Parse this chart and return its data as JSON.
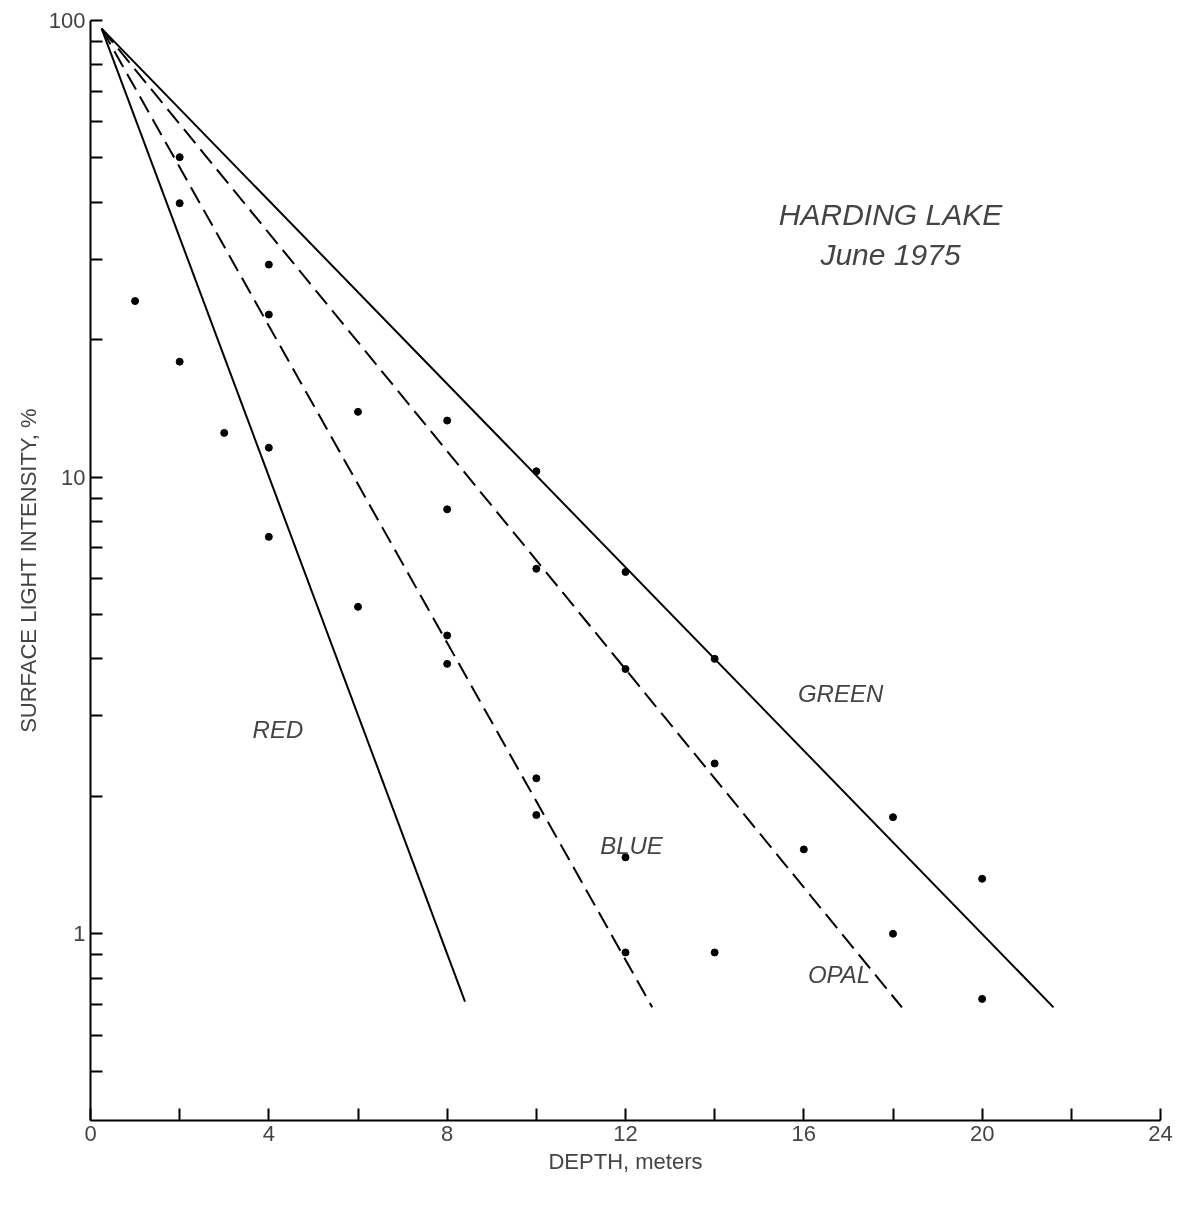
{
  "chart_data": {
    "type": "scatter",
    "title": "HARDING LAKE",
    "subtitle": "June 1975",
    "xlabel": "DEPTH, meters",
    "ylabel": "SURFACE LIGHT INTENSITY, %",
    "log": "y",
    "grid": false,
    "xlim": [
      0,
      24
    ],
    "ylim": [
      0.39,
      100
    ],
    "xticks": [
      0,
      {
        "value": 2,
        "label": null
      },
      4,
      {
        "value": 6,
        "label": null
      },
      8,
      {
        "value": 10,
        "label": null
      },
      12,
      {
        "value": 14,
        "label": null
      },
      16,
      {
        "value": 18,
        "label": null
      },
      20,
      {
        "value": 22,
        "label": null
      },
      24
    ],
    "yticks": [
      {
        "value": 0.5,
        "label": null
      },
      {
        "value": 0.6,
        "label": null
      },
      {
        "value": 0.7,
        "label": null
      },
      {
        "value": 0.8,
        "label": null
      },
      {
        "value": 0.9,
        "label": null
      },
      1,
      {
        "value": 2,
        "label": null
      },
      {
        "value": 3,
        "label": null
      },
      {
        "value": 4,
        "label": null
      },
      {
        "value": 5,
        "label": null
      },
      {
        "value": 6,
        "label": null
      },
      {
        "value": 7,
        "label": null
      },
      {
        "value": 8,
        "label": null
      },
      {
        "value": 9,
        "label": null
      },
      10,
      {
        "value": 20,
        "label": null
      },
      {
        "value": 30,
        "label": null
      },
      {
        "value": 40,
        "label": null
      },
      {
        "value": 50,
        "label": null
      },
      {
        "value": 60,
        "label": null
      },
      {
        "value": 70,
        "label": null
      },
      {
        "value": 80,
        "label": null
      },
      {
        "value": 90,
        "label": null
      },
      100
    ],
    "series": [
      {
        "marker": "circle",
        "color": "#000000",
        "x": [
          1,
          2,
          2,
          2,
          3,
          4,
          4,
          4,
          4,
          6,
          6,
          8,
          8,
          8,
          8,
          10,
          10,
          10,
          10,
          12,
          12,
          12,
          12,
          14,
          14,
          14,
          16,
          18,
          18,
          20,
          20
        ],
        "values": [
          24.3,
          50.2,
          39.8,
          17.9,
          12.5,
          29.2,
          22.7,
          11.6,
          7.4,
          13.9,
          5.2,
          13.3,
          8.5,
          4.5,
          3.9,
          10.3,
          6.3,
          2.19,
          1.82,
          6.2,
          3.8,
          1.47,
          0.91,
          4.0,
          2.36,
          0.91,
          1.53,
          1.8,
          1.0,
          1.32,
          0.72
        ]
      },
      {
        "type": "line",
        "name": "RED",
        "marker": "none",
        "line_style": "solid",
        "color": "#000000",
        "x": [
          0.25,
          8.4
        ],
        "values": [
          96,
          0.71
        ]
      },
      {
        "type": "line",
        "name": "BLUE",
        "marker": "none",
        "line_style": "dashed",
        "color": "#000000",
        "x": [
          0.25,
          12.6
        ],
        "values": [
          96,
          0.69
        ]
      },
      {
        "type": "line",
        "name": "OPAL",
        "marker": "none",
        "line_style": "dashed",
        "color": "#000000",
        "x": [
          0.25,
          18.2
        ],
        "values": [
          96,
          0.69
        ]
      },
      {
        "type": "line",
        "name": "GREEN",
        "marker": "none",
        "line_style": "solid",
        "color": "#000000",
        "x": [
          0.25,
          21.6
        ],
        "values": [
          96,
          0.69
        ]
      }
    ]
  }
}
